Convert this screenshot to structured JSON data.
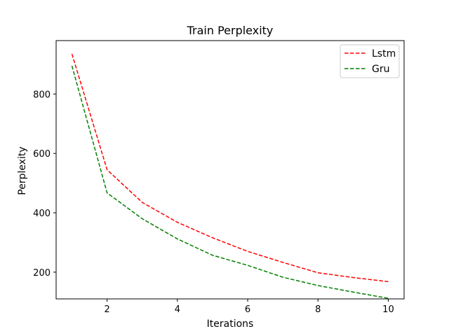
{
  "chart_data": {
    "type": "line",
    "title": "Train Perplexity",
    "xlabel": "Iterations",
    "ylabel": "Perplexity",
    "x": [
      1,
      2,
      3,
      4,
      5,
      6,
      7,
      8,
      9,
      10
    ],
    "xlim": [
      0.55,
      10.45
    ],
    "ylim": [
      110,
      980
    ],
    "xticks": [
      2,
      4,
      6,
      8,
      10
    ],
    "yticks": [
      200,
      400,
      600,
      800
    ],
    "grid": false,
    "legend_position": "top-right",
    "series": [
      {
        "name": "Lstm",
        "color": "#ff0000",
        "style": "dashed",
        "values": [
          935,
          545,
          435,
          368,
          316,
          270,
          233,
          198,
          182,
          168
        ]
      },
      {
        "name": "Gru",
        "color": "#008000",
        "style": "dashed",
        "values": [
          895,
          467,
          380,
          312,
          257,
          223,
          183,
          155,
          133,
          112
        ]
      }
    ]
  }
}
